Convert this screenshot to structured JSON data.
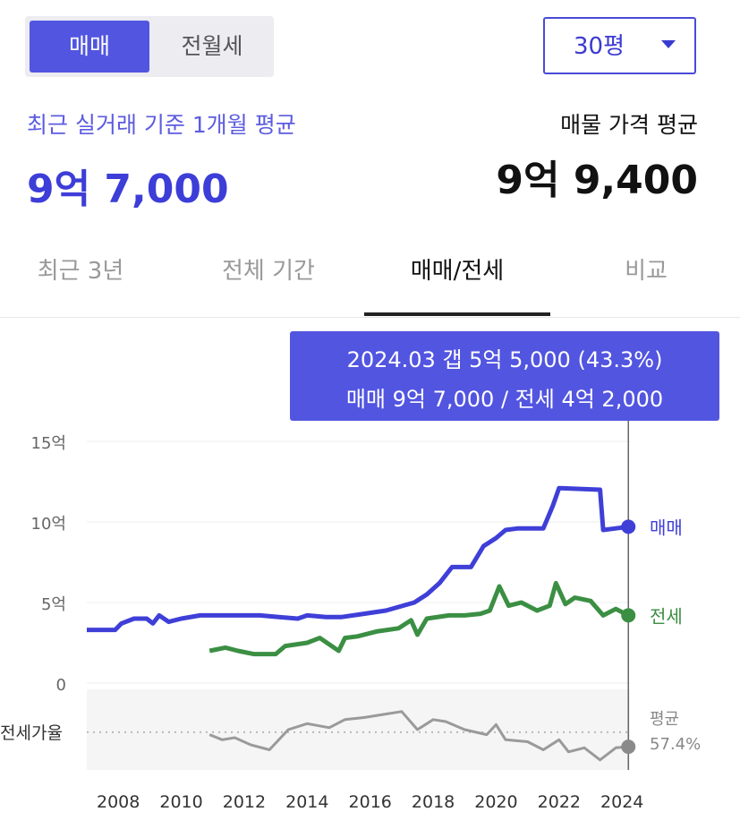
{
  "trade_type": {
    "active": "매매",
    "inactive": "전월세"
  },
  "area_select": {
    "value": "30평"
  },
  "summary": {
    "recent_caption": "최근 실거래 기준 1개월 평균",
    "recent_price": "9억 7,000",
    "listing_caption": "매물 가격 평균",
    "listing_price": "9억 9,400"
  },
  "tabs": [
    "최근 3년",
    "전체 기간",
    "매매/전세",
    "비교"
  ],
  "selected_tab": "매매/전세",
  "tooltip": {
    "line1": "2024.03  갭 5억 5,000 (43.3%)",
    "line2": "매매 9억 7,000 / 전세 4억 2,000"
  },
  "colors": {
    "sale": "#3f3fd8",
    "jeonse": "#3b8f43",
    "ratio": "#9a9a9a",
    "accent": "#5255e0"
  },
  "chart_data": {
    "type": "line",
    "x_ticks": [
      "2008",
      "2010",
      "2012",
      "2014",
      "2016",
      "2018",
      "2020",
      "2022",
      "2024"
    ],
    "y_ticks": [
      {
        "value": 0,
        "label": "0"
      },
      {
        "value": 5,
        "label": "5억"
      },
      {
        "value": 10,
        "label": "10억"
      },
      {
        "value": 15,
        "label": "15억"
      }
    ],
    "ylim": [
      0,
      15
    ],
    "xlim": [
      2007.0,
      2024.25
    ],
    "series": [
      {
        "name": "매매",
        "unit": "억",
        "points": [
          [
            2007.0,
            3.3
          ],
          [
            2007.9,
            3.3
          ],
          [
            2008.1,
            3.7
          ],
          [
            2008.5,
            4.0
          ],
          [
            2008.9,
            4.0
          ],
          [
            2009.1,
            3.7
          ],
          [
            2009.3,
            4.2
          ],
          [
            2009.6,
            3.8
          ],
          [
            2010.0,
            4.0
          ],
          [
            2010.6,
            4.2
          ],
          [
            2012.5,
            4.2
          ],
          [
            2013.1,
            4.1
          ],
          [
            2013.7,
            4.0
          ],
          [
            2014.0,
            4.2
          ],
          [
            2014.6,
            4.1
          ],
          [
            2015.1,
            4.1
          ],
          [
            2015.8,
            4.3
          ],
          [
            2016.5,
            4.5
          ],
          [
            2017.4,
            5.0
          ],
          [
            2017.8,
            5.5
          ],
          [
            2018.2,
            6.2
          ],
          [
            2018.6,
            7.2
          ],
          [
            2019.2,
            7.2
          ],
          [
            2019.6,
            8.5
          ],
          [
            2020.0,
            9.0
          ],
          [
            2020.3,
            9.5
          ],
          [
            2020.7,
            9.6
          ],
          [
            2021.5,
            9.6
          ],
          [
            2021.8,
            11.0
          ],
          [
            2022.0,
            12.1
          ],
          [
            2023.3,
            12.0
          ],
          [
            2023.4,
            9.5
          ],
          [
            2023.8,
            9.6
          ],
          [
            2024.2,
            9.7
          ]
        ]
      },
      {
        "name": "전세",
        "unit": "억",
        "points": [
          [
            2010.9,
            2.0
          ],
          [
            2011.4,
            2.2
          ],
          [
            2011.8,
            2.0
          ],
          [
            2012.3,
            1.8
          ],
          [
            2013.0,
            1.8
          ],
          [
            2013.3,
            2.3
          ],
          [
            2014.0,
            2.5
          ],
          [
            2014.4,
            2.8
          ],
          [
            2014.7,
            2.4
          ],
          [
            2015.0,
            2.0
          ],
          [
            2015.2,
            2.8
          ],
          [
            2015.6,
            2.9
          ],
          [
            2016.2,
            3.2
          ],
          [
            2016.9,
            3.4
          ],
          [
            2017.3,
            3.9
          ],
          [
            2017.5,
            3.0
          ],
          [
            2017.8,
            4.0
          ],
          [
            2018.5,
            4.2
          ],
          [
            2019.0,
            4.2
          ],
          [
            2019.5,
            4.3
          ],
          [
            2019.8,
            4.5
          ],
          [
            2020.1,
            6.0
          ],
          [
            2020.4,
            4.8
          ],
          [
            2020.8,
            5.0
          ],
          [
            2021.3,
            4.5
          ],
          [
            2021.7,
            4.8
          ],
          [
            2021.9,
            6.2
          ],
          [
            2022.2,
            4.9
          ],
          [
            2022.5,
            5.3
          ],
          [
            2023.0,
            5.1
          ],
          [
            2023.4,
            4.2
          ],
          [
            2023.8,
            4.6
          ],
          [
            2024.2,
            4.2
          ]
        ]
      },
      {
        "name": "전세가율",
        "points": [
          [
            2010.9,
            0.55
          ],
          [
            2011.3,
            0.5
          ],
          [
            2011.7,
            0.52
          ],
          [
            2012.2,
            0.45
          ],
          [
            2012.8,
            0.4
          ],
          [
            2013.4,
            0.6
          ],
          [
            2014.0,
            0.66
          ],
          [
            2014.7,
            0.62
          ],
          [
            2015.2,
            0.7
          ],
          [
            2015.8,
            0.72
          ],
          [
            2016.4,
            0.75
          ],
          [
            2017.0,
            0.78
          ],
          [
            2017.5,
            0.6
          ],
          [
            2018.0,
            0.7
          ],
          [
            2018.4,
            0.68
          ],
          [
            2019.0,
            0.6
          ],
          [
            2019.7,
            0.55
          ],
          [
            2020.0,
            0.65
          ],
          [
            2020.3,
            0.5
          ],
          [
            2021.0,
            0.48
          ],
          [
            2021.5,
            0.4
          ],
          [
            2022.0,
            0.5
          ],
          [
            2022.3,
            0.38
          ],
          [
            2022.8,
            0.42
          ],
          [
            2023.3,
            0.3
          ],
          [
            2023.8,
            0.42
          ],
          [
            2024.2,
            0.43
          ]
        ]
      }
    ],
    "end_labels": {
      "sale": "매매",
      "jeonse": "전세"
    },
    "ratio_panel": {
      "label": "전세가율",
      "avg_label": "평균",
      "avg_value": "57.4%",
      "avg": 0.574,
      "ylim": [
        0.2,
        1.0
      ]
    },
    "highlight_x": 2024.2,
    "grid": true
  }
}
